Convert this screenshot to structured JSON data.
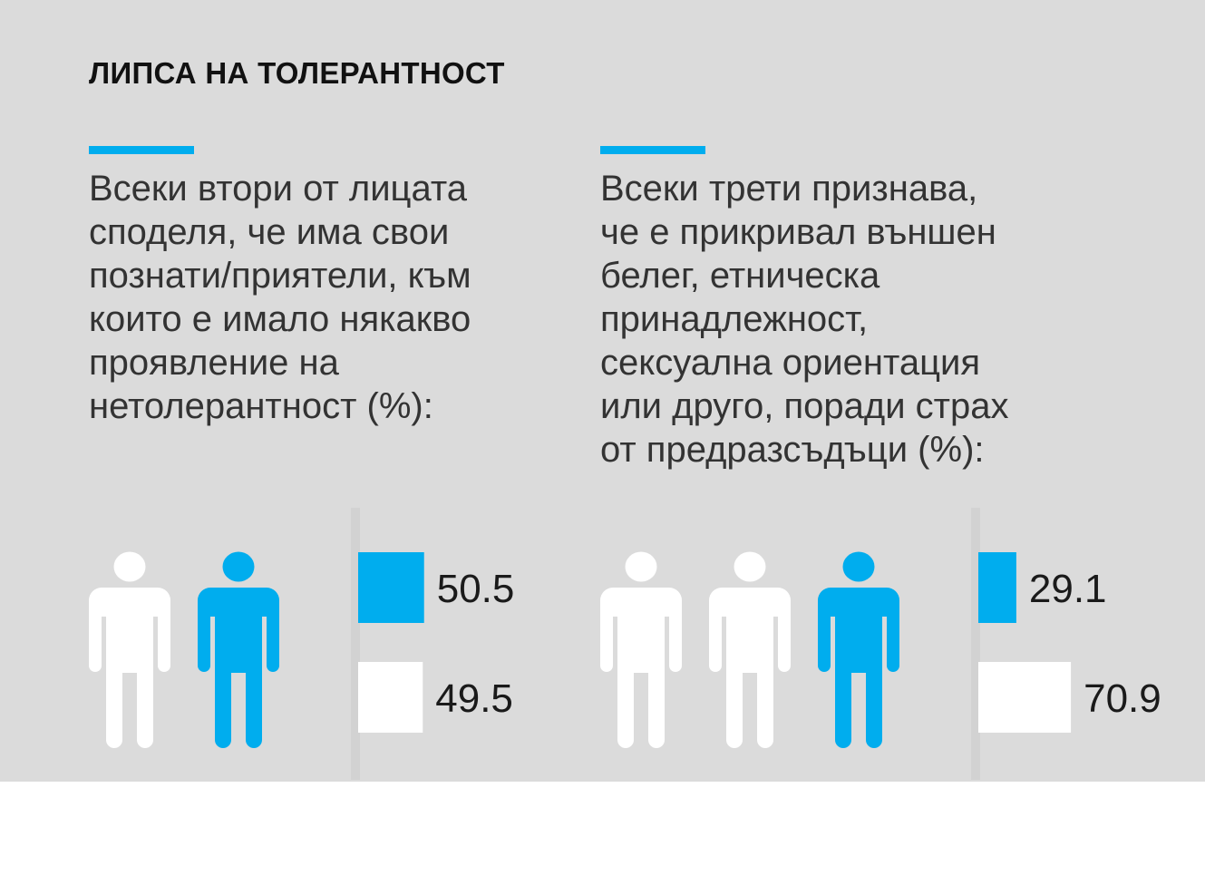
{
  "title": "ЛИПСА НА ТОЛЕРАНТНОСТ",
  "colors": {
    "background": "#dbdbdb",
    "accent": "#00adee",
    "neutral": "#ffffff"
  },
  "chart_data": [
    {
      "type": "bar",
      "orientation": "horizontal",
      "title": "Всеки втори от лицата\nсподеля, че има свои\nпознати/приятели, към\nкоито е имало някакво\nпроявление на\nнетолерантност (%):",
      "values": [
        50.5,
        49.5
      ],
      "value_labels": [
        "50.5",
        "49.5"
      ],
      "bar_colors": [
        "#00adee",
        "#ffffff"
      ],
      "pictogram": {
        "figures": 2,
        "highlighted": 1
      }
    },
    {
      "type": "bar",
      "orientation": "horizontal",
      "title": "Всеки трети признава,\nче е прикривал външен\nбелег, етническа\nпринадлежност,\nсексуална ориентация\nили друго, поради страх\nот предразсъдъци (%):",
      "values": [
        29.1,
        70.9
      ],
      "value_labels": [
        "29.1",
        "70.9"
      ],
      "bar_colors": [
        "#00adee",
        "#ffffff"
      ],
      "pictogram": {
        "figures": 3,
        "highlighted": 1
      }
    }
  ]
}
